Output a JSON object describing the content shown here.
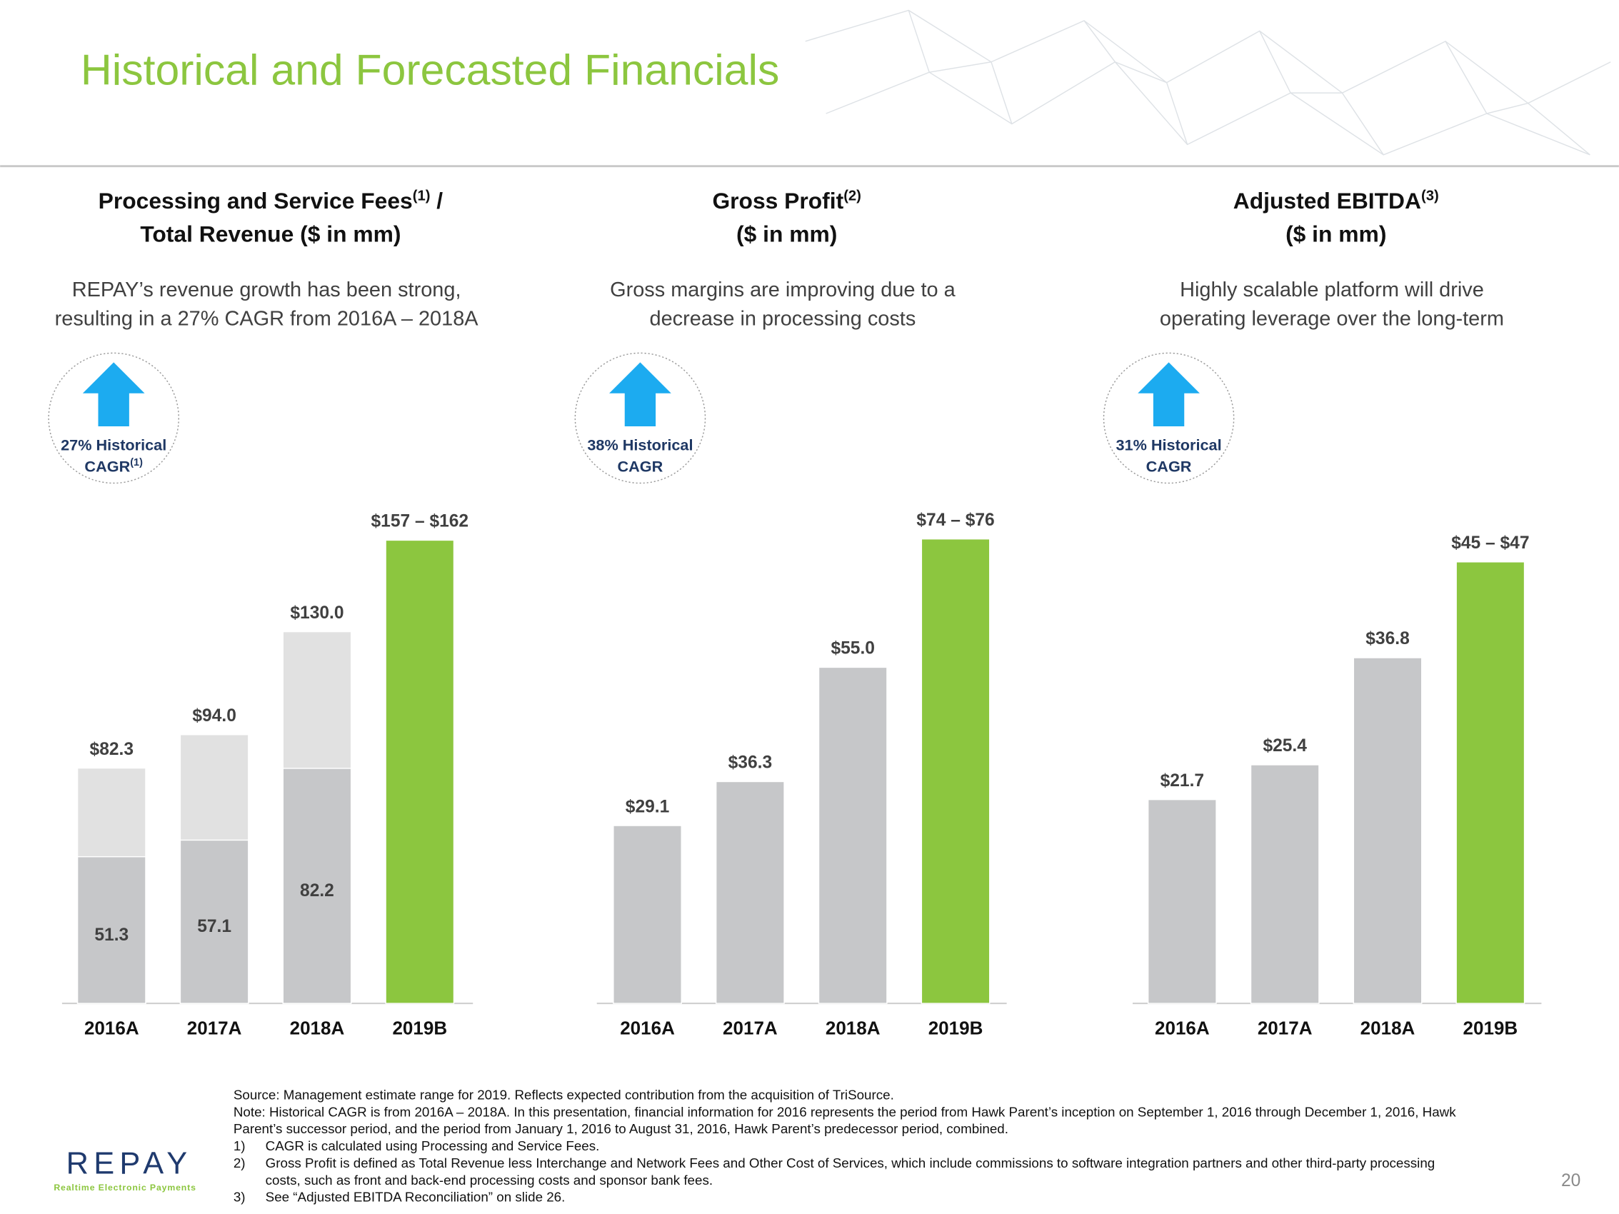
{
  "header": {
    "title": "Historical and Forecasted Financials"
  },
  "chart_data": [
    {
      "type": "bar",
      "title": "Processing and Service Fees",
      "title_note": "(1)",
      "title_end": " /",
      "title_line2": "Total Revenue ($ in mm)",
      "subtitle": [
        "REPAY’s revenue growth has been strong,",
        "resulting in a 27% CAGR from 2016A – 2018A"
      ],
      "badge": {
        "lines": [
          "27% Historical",
          "CAGR"
        ],
        "note": "(1)"
      },
      "categories": [
        "2016A",
        "2017A",
        "2018A",
        "2019B"
      ],
      "series": [
        {
          "color": "#e1e1e1",
          "values": [
            82.3,
            94.0,
            130.0,
            [
              157,
              162
            ]
          ],
          "value_labels": [
            "$82.3",
            "$94.0",
            "$130.0",
            "$157 – $162"
          ]
        },
        {
          "color": "#c6c7c9",
          "values": [
            51.3,
            57.1,
            82.2,
            null
          ]
        }
      ],
      "highlight_color": "#8cc63f"
    },
    {
      "type": "bar",
      "title": "Gross Profit",
      "title_note": "(2)",
      "title_line2": "($ in mm)",
      "subtitle": [
        "Gross margins are improving due to a",
        "decrease in processing costs"
      ],
      "badge": {
        "lines": [
          "38% Historical",
          "CAGR"
        ]
      },
      "categories": [
        "2016A",
        "2017A",
        "2018A",
        "2019B"
      ],
      "series": [
        {
          "color": "#c6c7c9",
          "values": [
            29.1,
            36.3,
            55.0,
            [
              74,
              76
            ]
          ],
          "value_labels": [
            "$29.1",
            "$36.3",
            "$55.0",
            "$74 – $76"
          ]
        }
      ],
      "highlight_color": "#8cc63f"
    },
    {
      "type": "bar",
      "title": "Adjusted EBITDA",
      "title_note": "(3)",
      "title_line2": "($ in mm)",
      "subtitle": [
        "Highly scalable platform will drive",
        "operating leverage over the long-term"
      ],
      "badge": {
        "lines": [
          "31% Historical",
          "CAGR"
        ]
      },
      "categories": [
        "2016A",
        "2017A",
        "2018A",
        "2019B"
      ],
      "series": [
        {
          "color": "#c6c7c9",
          "values": [
            21.7,
            25.4,
            36.8,
            [
              45,
              47
            ]
          ],
          "value_labels": [
            "$21.7",
            "$25.4",
            "$36.8",
            "$45 – $47"
          ]
        }
      ],
      "highlight_color": "#8cc63f"
    }
  ],
  "footnotes": {
    "lines": [
      "Source: Management estimate range for 2019. Reflects expected contribution from the acquisition of TriSource.",
      "Note: Historical CAGR is from 2016A – 2018A. In this presentation, financial information for 2016 represents the period from Hawk Parent’s inception on September 1, 2016 through December 1, 2016, Hawk",
      "Parent’s successor period, and the period from January 1, 2016 to August 31, 2016, Hawk Parent’s predecessor period, combined."
    ],
    "items": [
      {
        "num": "1)",
        "lines": [
          "CAGR is calculated using Processing and Service Fees."
        ]
      },
      {
        "num": "2)",
        "lines": [
          "Gross Profit is defined as Total Revenue less Interchange and Network Fees and Other Cost of Services, which include commissions to software integration partners and other third-party processing",
          "costs, such as front and back-end processing costs and sponsor bank fees."
        ]
      },
      {
        "num": "3)",
        "lines": [
          "See “Adjusted EBITDA Reconciliation” on slide 26."
        ]
      }
    ]
  },
  "logo": {
    "name": "REPAY",
    "tagline": "Realtime Electronic Payments"
  },
  "page_number": "20"
}
